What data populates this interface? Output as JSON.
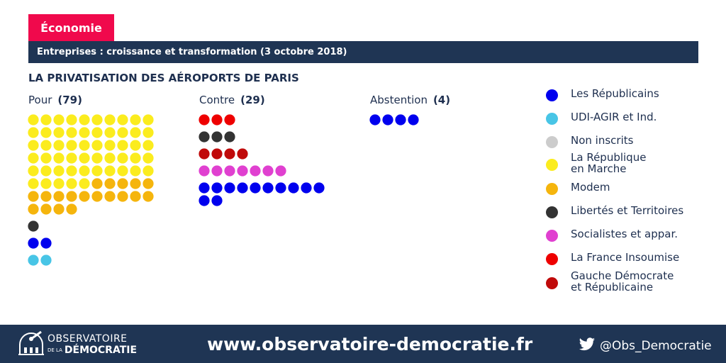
{
  "header": {
    "category": "Économie",
    "subtitle": "Entreprises : croissance et transformation (3 octobre 2018)"
  },
  "chart_data": {
    "type": "dot_matrix",
    "title": "LA PRIVATISATION DES AÉROPORTS DE PARIS",
    "groups": [
      {
        "label": "Pour",
        "count_label": "(79)",
        "total": 79,
        "rows": [
          {
            "party": "La République en Marche",
            "count": 55
          },
          {
            "party": "Modem",
            "count": 19
          },
          {
            "party": "Libertés et Territoires",
            "count": 1
          },
          {
            "party": "Les Républicains",
            "count": 2
          },
          {
            "party": "UDI-AGIR et Ind.",
            "count": 2
          }
        ]
      },
      {
        "label": "Contre",
        "count_label": "(29)",
        "total": 29,
        "rows": [
          {
            "party": "La France Insoumise",
            "count": 3
          },
          {
            "party": "Libertés et Territoires",
            "count": 3
          },
          {
            "party": "Gauche Démocrate et Républicaine",
            "count": 4
          },
          {
            "party": "Socialistes et appar.",
            "count": 7
          },
          {
            "party": "Les Républicains",
            "count": 12
          }
        ]
      },
      {
        "label": "Abstention",
        "count_label": "(4)",
        "total": 4,
        "rows": [
          {
            "party": "Les Républicains",
            "count": 4
          }
        ]
      }
    ],
    "legend": [
      {
        "party": "Les Républicains",
        "label": "Les Républicains",
        "color": "#0000ee"
      },
      {
        "party": "UDI-AGIR et Ind.",
        "label": "UDI-AGIR et Ind.",
        "color": "#48c5e6"
      },
      {
        "party": "Non inscrits",
        "label": "Non inscrits",
        "color": "#cccccc"
      },
      {
        "party": "La République en Marche",
        "label": "La République\nen Marche",
        "color": "#fbec1e"
      },
      {
        "party": "Modem",
        "label": "Modem",
        "color": "#f5b50d"
      },
      {
        "party": "Libertés et Territoires",
        "label": "Libertés et Territoires",
        "color": "#333333"
      },
      {
        "party": "Socialistes et appar.",
        "label": "Socialistes et appar.",
        "color": "#e040d0"
      },
      {
        "party": "La France Insoumise",
        "label": "La France Insoumise",
        "color": "#ee0000"
      },
      {
        "party": "Gauche Démocrate et Républicaine",
        "label": "Gauche Démocrate\net Républicaine",
        "color": "#c00a0a"
      }
    ],
    "legend_placement": "right"
  },
  "footer": {
    "logo_line1": "OBSERVATOIRE",
    "logo_line2_small": "DE LA",
    "logo_line2": "DÉMOCRATIE",
    "url": "www.observatoire-democratie.fr",
    "twitter_handle": "@Obs_Democratie",
    "icons": [
      "observatory-dome-icon",
      "twitter-bird-icon"
    ]
  }
}
